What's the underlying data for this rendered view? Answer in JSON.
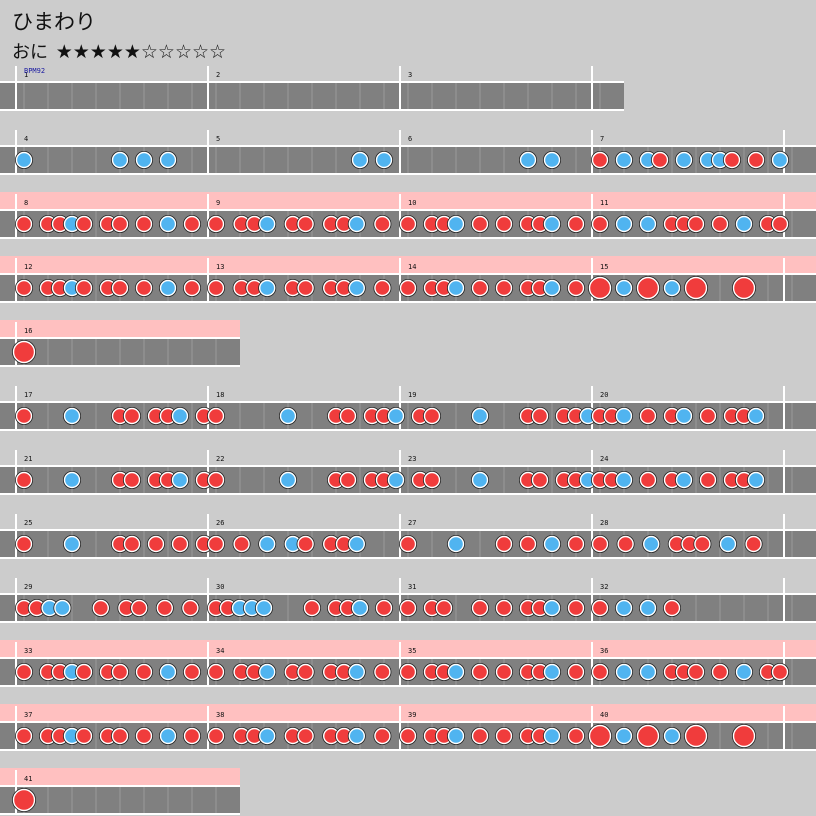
{
  "song": {
    "title": "ひまわり",
    "difficulty_label": "おに",
    "stars_text": "★★★★★☆☆☆☆☆",
    "stars_filled": 5,
    "stars_total": 10
  },
  "bpm_label": "BPM92",
  "colors": {
    "background": "#cccccc",
    "lane": "#808080",
    "lane_line": "#ffffff",
    "gogo_band": "#ffc0c0",
    "don": "#f03c3c",
    "ka": "#50b4f0"
  },
  "rows": [
    {
      "gogo": false,
      "measures": [
        1,
        2,
        3
      ],
      "open_end": true,
      "notes": [
        [],
        [],
        []
      ]
    },
    {
      "gogo": false,
      "measures": [
        4,
        5,
        6,
        7
      ],
      "open_end": false,
      "notes": [
        [
          "k",
          "",
          "",
          "",
          "",
          "",
          "",
          "",
          "k",
          "",
          "k",
          "",
          "k",
          "",
          "",
          ""
        ],
        [
          "",
          "",
          "",
          "",
          "",
          "",
          "",
          "",
          "",
          "",
          "",
          "",
          "k",
          "",
          "k",
          ""
        ],
        [
          "",
          "",
          "",
          "",
          "",
          "",
          "",
          "",
          "",
          "",
          "k",
          "",
          "k",
          "",
          "",
          ""
        ],
        [
          "d",
          "",
          "k",
          "",
          "k",
          "d",
          "",
          "k",
          "",
          "k",
          "k",
          "d",
          "",
          "d",
          "",
          "k"
        ]
      ]
    },
    {
      "gogo": true,
      "measures": [
        8,
        9,
        10,
        11
      ],
      "open_end": false,
      "notes": [
        [
          "d",
          "",
          "d",
          "d",
          "k",
          "d",
          "",
          "d",
          "d",
          "",
          "d",
          "",
          "k",
          "",
          "d",
          ""
        ],
        [
          "d",
          "",
          "d",
          "d",
          "k",
          "",
          "d",
          "d",
          "",
          "d",
          "d",
          "k",
          "",
          "d",
          ""
        ],
        [
          "d",
          "",
          "d",
          "d",
          "k",
          "",
          "d",
          "",
          "d",
          "",
          "d",
          "d",
          "k",
          "",
          "d",
          ""
        ],
        [
          "d",
          "",
          "k",
          "",
          "k",
          "",
          "d",
          "d",
          "d",
          "",
          "d",
          "",
          "k",
          "",
          "d",
          "d"
        ]
      ]
    },
    {
      "gogo": true,
      "measures": [
        12,
        13,
        14,
        15
      ],
      "open_end": false,
      "notes": [
        [
          "d",
          "",
          "d",
          "d",
          "k",
          "d",
          "",
          "d",
          "d",
          "",
          "d",
          "",
          "k",
          "",
          "d",
          ""
        ],
        [
          "d",
          "",
          "d",
          "d",
          "k",
          "",
          "d",
          "d",
          "",
          "d",
          "d",
          "k",
          "",
          "d",
          ""
        ],
        [
          "d",
          "",
          "d",
          "d",
          "k",
          "",
          "d",
          "",
          "d",
          "",
          "d",
          "d",
          "k",
          "",
          "d",
          ""
        ],
        [
          "D",
          "",
          "k",
          "",
          "D",
          "",
          "k",
          "",
          "D",
          "",
          "",
          "",
          "D",
          "",
          "",
          ""
        ]
      ]
    },
    {
      "gogo": true,
      "measures": [
        16
      ],
      "open_end": false,
      "notes": [
        [
          "D",
          "",
          "",
          "",
          "",
          "",
          "",
          "",
          "",
          "",
          "",
          "",
          "",
          "",
          "",
          ""
        ]
      ]
    },
    {
      "gogo": false,
      "measures": [
        17,
        18,
        19,
        20
      ],
      "open_end": false,
      "notes": [
        [
          "d",
          "",
          "",
          "",
          "k",
          "",
          "",
          "",
          "d",
          "d",
          "",
          "d",
          "d",
          "k",
          "",
          "d"
        ],
        [
          "d",
          "",
          "",
          "",
          "",
          "",
          "k",
          "",
          "",
          "",
          "d",
          "d",
          "",
          "d",
          "d",
          "k"
        ],
        [
          "",
          "d",
          "d",
          "",
          "",
          "",
          "k",
          "",
          "",
          "",
          "d",
          "d",
          "",
          "d",
          "d",
          "k"
        ],
        [
          "d",
          "d",
          "k",
          "",
          "d",
          "",
          "d",
          "k",
          "",
          "d",
          "",
          "d",
          "d",
          "k",
          "",
          ""
        ]
      ]
    },
    {
      "gogo": false,
      "measures": [
        21,
        22,
        23,
        24
      ],
      "open_end": false,
      "notes": [
        [
          "d",
          "",
          "",
          "",
          "k",
          "",
          "",
          "",
          "d",
          "d",
          "",
          "d",
          "d",
          "k",
          "",
          "d"
        ],
        [
          "d",
          "",
          "",
          "",
          "",
          "",
          "k",
          "",
          "",
          "",
          "d",
          "d",
          "",
          "d",
          "d",
          "k"
        ],
        [
          "",
          "d",
          "d",
          "",
          "",
          "",
          "k",
          "",
          "",
          "",
          "d",
          "d",
          "",
          "d",
          "d",
          "k"
        ],
        [
          "d",
          "d",
          "k",
          "",
          "d",
          "",
          "d",
          "k",
          "",
          "d",
          "",
          "d",
          "d",
          "k",
          "",
          ""
        ]
      ]
    },
    {
      "gogo": false,
      "measures": [
        25,
        26,
        27,
        28
      ],
      "open_end": false,
      "notes": [
        [
          "d",
          "",
          "",
          "",
          "k",
          "",
          "",
          "",
          "d",
          "d",
          "",
          "d",
          "",
          "d",
          "",
          "d"
        ],
        [
          "d",
          "",
          "d",
          "",
          "k",
          "",
          "k",
          "d",
          "",
          "d",
          "d",
          "k",
          "",
          "",
          ""
        ],
        [
          "d",
          "",
          "",
          "",
          "k",
          "",
          "",
          "",
          "d",
          "",
          "d",
          "",
          "k",
          "",
          "d",
          ""
        ],
        [
          "d",
          "",
          "d",
          "",
          "k",
          "",
          "d",
          "d",
          "d",
          "",
          "k",
          "",
          "d",
          "",
          ""
        ]
      ]
    },
    {
      "gogo": false,
      "measures": [
        29,
        30,
        31,
        32
      ],
      "open_end": true,
      "notes": [
        [
          "d",
          "d",
          "k",
          "k",
          "",
          "",
          "d",
          "",
          "d",
          "d",
          "",
          "d",
          "",
          "d",
          ""
        ],
        [
          "d",
          "d",
          "k",
          "k",
          "k",
          "",
          "",
          "",
          "d",
          "",
          "d",
          "d",
          "k",
          "",
          "d",
          ""
        ],
        [
          "d",
          "",
          "d",
          "d",
          "",
          "",
          "d",
          "",
          "d",
          "",
          "d",
          "d",
          "k",
          "",
          "d",
          ""
        ],
        [
          "d",
          "",
          "k",
          "",
          "k",
          "",
          "d",
          "",
          "",
          "",
          "",
          "",
          "",
          "",
          "",
          ""
        ]
      ]
    },
    {
      "gogo": true,
      "measures": [
        33,
        34,
        35,
        36
      ],
      "open_end": false,
      "notes": [
        [
          "d",
          "",
          "d",
          "d",
          "k",
          "d",
          "",
          "d",
          "d",
          "",
          "d",
          "",
          "k",
          "",
          "d",
          ""
        ],
        [
          "d",
          "",
          "d",
          "d",
          "k",
          "",
          "d",
          "d",
          "",
          "d",
          "d",
          "k",
          "",
          "d",
          ""
        ],
        [
          "d",
          "",
          "d",
          "d",
          "k",
          "",
          "d",
          "",
          "d",
          "",
          "d",
          "d",
          "k",
          "",
          "d",
          ""
        ],
        [
          "d",
          "",
          "k",
          "",
          "k",
          "",
          "d",
          "d",
          "d",
          "",
          "d",
          "",
          "k",
          "",
          "d",
          "d"
        ]
      ]
    },
    {
      "gogo": true,
      "measures": [
        37,
        38,
        39,
        40
      ],
      "open_end": false,
      "notes": [
        [
          "d",
          "",
          "d",
          "d",
          "k",
          "d",
          "",
          "d",
          "d",
          "",
          "d",
          "",
          "k",
          "",
          "d",
          ""
        ],
        [
          "d",
          "",
          "d",
          "d",
          "k",
          "",
          "d",
          "d",
          "",
          "d",
          "d",
          "k",
          "",
          "d",
          ""
        ],
        [
          "d",
          "",
          "d",
          "d",
          "k",
          "",
          "d",
          "",
          "d",
          "",
          "d",
          "d",
          "k",
          "",
          "d",
          ""
        ],
        [
          "D",
          "",
          "k",
          "",
          "D",
          "",
          "k",
          "",
          "D",
          "",
          "",
          "",
          "D",
          "",
          "",
          ""
        ]
      ]
    },
    {
      "gogo": true,
      "measures": [
        41
      ],
      "open_end": false,
      "notes": [
        [
          "D",
          "",
          "",
          "",
          "",
          "",
          "",
          "",
          "",
          "",
          "",
          "",
          "",
          "",
          "",
          ""
        ]
      ]
    }
  ]
}
